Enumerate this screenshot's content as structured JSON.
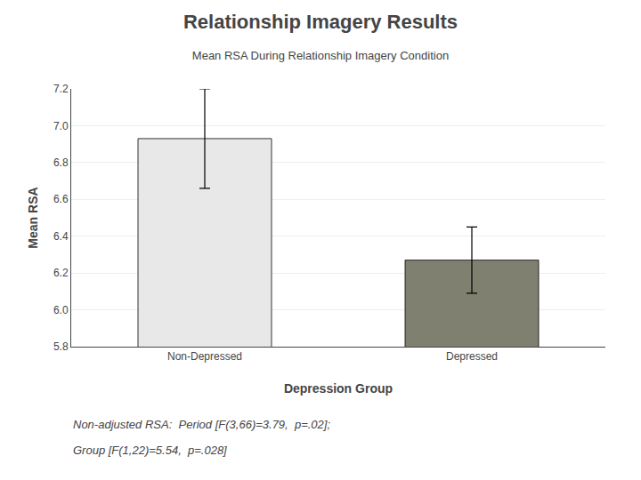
{
  "chart_data": {
    "type": "bar",
    "title": "Relationship Imagery Results",
    "subtitle": "Mean RSA During Relationship Imagery Condition",
    "categories": [
      "Non-Depressed",
      "Depressed"
    ],
    "values": [
      6.93,
      6.27
    ],
    "errors": [
      0.27,
      0.18
    ],
    "colors": [
      "#e8e8e8",
      "#808070"
    ],
    "xlabel": "Depression Group",
    "ylabel": "Mean RSA",
    "ylim": [
      5.8,
      7.2
    ],
    "yticks": [
      5.8,
      {
        "value": 6.0,
        "label": "6.0"
      },
      6.2,
      6.4,
      6.6,
      6.8,
      {
        "value": 7.0,
        "label": "7.0"
      },
      7.2
    ],
    "grid": true,
    "annotations": [
      "Non-adjusted RSA:  Period [F(3,66)=3.79,  p=.02];",
      "Group [F(1,22)=5.54,  p=.028]"
    ]
  }
}
